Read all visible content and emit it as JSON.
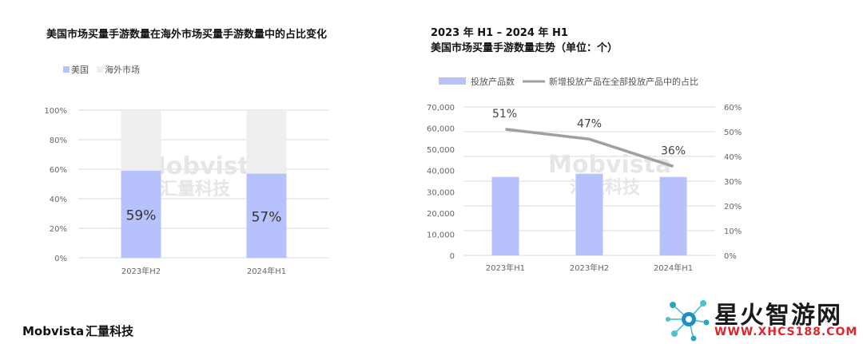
{
  "titles": {
    "left": "美国市场买量手游数量在海外市场买量手游数量中的占比变化",
    "right_line1": "2023 年 H1 – 2024 年 H1",
    "right_line2": "美国市场买量手游数量走势（单位：个）"
  },
  "watermark": {
    "brand": "Mobvista",
    "cn": "汇量科技"
  },
  "footer": {
    "brand": "Mobvista",
    "cn": "汇量科技"
  },
  "site": {
    "name": "星火智游网",
    "url": "WWW.XHCS188.COM"
  },
  "colors": {
    "us": "#b7c1fb",
    "overseas": "#efefef",
    "line": "#a0a0a0",
    "grid": "#d9d9d9"
  },
  "chart_data": [
    {
      "type": "bar",
      "stacked": true,
      "title": "美国市场买量手游数量在海外市场买量手游数量中的占比变化",
      "categories": [
        "2023年H2",
        "2024年H1"
      ],
      "series": [
        {
          "name": "美国",
          "values": [
            59,
            57
          ],
          "labels": [
            "59%",
            "57%"
          ]
        },
        {
          "name": "海外市场",
          "values": [
            41,
            43
          ]
        }
      ],
      "y_ticks": [
        "0%",
        "20%",
        "40%",
        "60%",
        "80%",
        "100%"
      ],
      "ylim": [
        0,
        100
      ],
      "legend": "top-left"
    },
    {
      "type": "bar",
      "title": "2023 年 H1 – 2024 年 H1 美国市场买量手游数量走势（单位：个）",
      "categories": [
        "2023年H1",
        "2023年H2",
        "2024年H1"
      ],
      "series": [
        {
          "name": "投放产品数",
          "axis": "left",
          "values": [
            37000,
            38500,
            37000
          ]
        },
        {
          "name": "新增投放产品在全部投放产品中的占比",
          "type": "line",
          "axis": "right",
          "values": [
            51,
            47,
            36
          ],
          "labels": [
            "51%",
            "47%",
            "36%"
          ]
        }
      ],
      "y_left_ticks": [
        "0",
        "10,000",
        "20,000",
        "30,000",
        "40,000",
        "50,000",
        "60,000",
        "70,000"
      ],
      "y_right_ticks": [
        "0%",
        "10%",
        "20%",
        "30%",
        "40%",
        "50%",
        "60%"
      ],
      "ylim_left": [
        0,
        70000
      ],
      "ylim_right": [
        0,
        60
      ],
      "legend": "top-left"
    }
  ]
}
